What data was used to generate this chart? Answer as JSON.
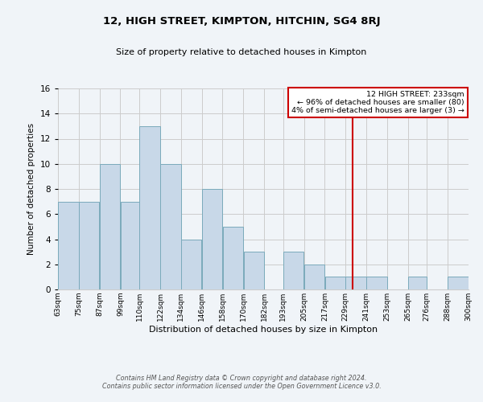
{
  "title": "12, HIGH STREET, KIMPTON, HITCHIN, SG4 8RJ",
  "subtitle": "Size of property relative to detached houses in Kimpton",
  "xlabel": "Distribution of detached houses by size in Kimpton",
  "ylabel": "Number of detached properties",
  "bar_color": "#c8d8e8",
  "bar_edge_color": "#7aaabb",
  "grid_color": "#cccccc",
  "bg_color": "#f0f4f8",
  "vline_x": 233,
  "vline_color": "#cc0000",
  "bin_edges": [
    63,
    75,
    87,
    99,
    110,
    122,
    134,
    146,
    158,
    170,
    182,
    193,
    205,
    217,
    229,
    241,
    253,
    265,
    276,
    288,
    300
  ],
  "bin_labels": [
    "63sqm",
    "75sqm",
    "87sqm",
    "99sqm",
    "110sqm",
    "122sqm",
    "134sqm",
    "146sqm",
    "158sqm",
    "170sqm",
    "182sqm",
    "193sqm",
    "205sqm",
    "217sqm",
    "229sqm",
    "241sqm",
    "253sqm",
    "265sqm",
    "276sqm",
    "288sqm",
    "300sqm"
  ],
  "counts": [
    7,
    7,
    10,
    7,
    13,
    10,
    4,
    8,
    5,
    3,
    0,
    3,
    2,
    1,
    1,
    1,
    0,
    1,
    0,
    1
  ],
  "ylim": [
    0,
    16
  ],
  "yticks": [
    0,
    2,
    4,
    6,
    8,
    10,
    12,
    14,
    16
  ],
  "annotation_title": "12 HIGH STREET: 233sqm",
  "annotation_line1": "← 96% of detached houses are smaller (80)",
  "annotation_line2": "4% of semi-detached houses are larger (3) →",
  "annotation_box_color": "#ffffff",
  "annotation_border_color": "#cc0000",
  "footer_line1": "Contains HM Land Registry data © Crown copyright and database right 2024.",
  "footer_line2": "Contains public sector information licensed under the Open Government Licence v3.0."
}
